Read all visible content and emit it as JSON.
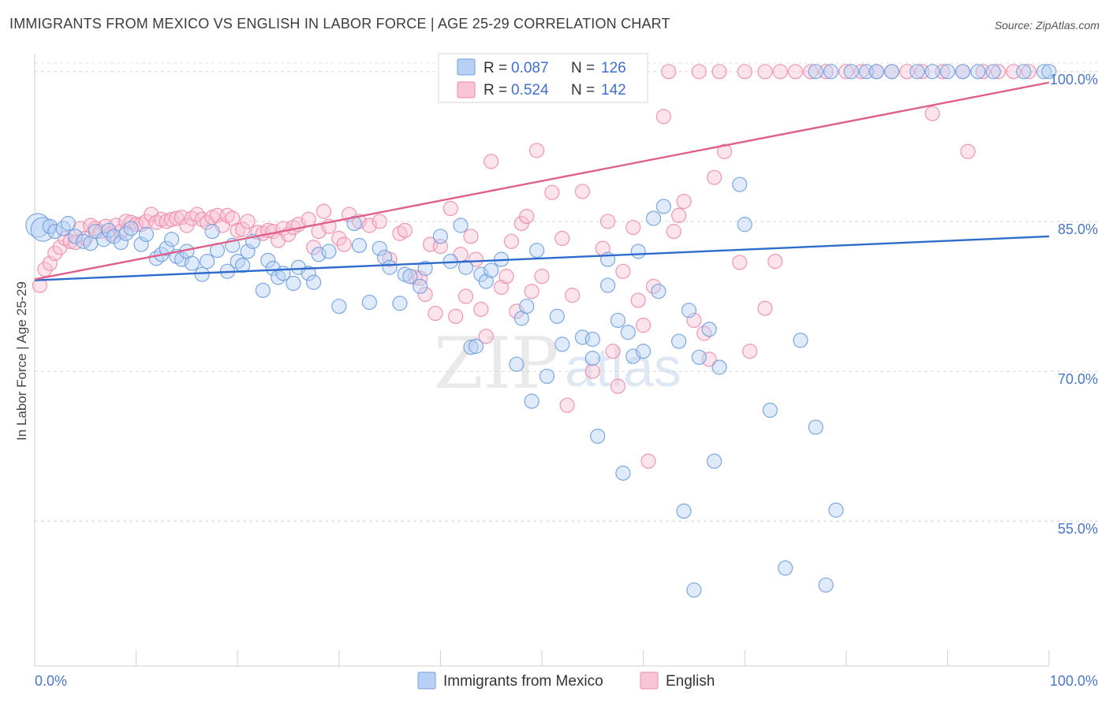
{
  "title": "IMMIGRANTS FROM MEXICO VS ENGLISH IN LABOR FORCE | AGE 25-29 CORRELATION CHART",
  "source": "Source: ZipAtlas.com",
  "watermark": {
    "part1": "ZIP",
    "part2": "atlas"
  },
  "chart_data": {
    "type": "scatter",
    "title": "IMMIGRANTS FROM MEXICO VS ENGLISH IN LABOR FORCE | AGE 25-29 CORRELATION CHART",
    "xlabel": "",
    "ylabel": "In Labor Force | Age 25-29",
    "xlim": [
      0,
      100
    ],
    "ylim": [
      40.5,
      101.8
    ],
    "x_tick_labels": [
      "0.0%",
      "100.0%"
    ],
    "y_ticks": [
      55,
      70,
      85,
      100
    ],
    "y_tick_labels": [
      "55.0%",
      "70.0%",
      "85.0%",
      "100.0%"
    ],
    "grid": "horizontal dashed",
    "legend_placement": "top-center",
    "colors": {
      "mexico": "#6f9fe0",
      "english": "#f08aaa",
      "mexico_line": "#2d6ccc",
      "english_line": "#e0608c"
    },
    "stats": [
      {
        "r_label": "R =",
        "r": "0.087",
        "n_label": "N =",
        "n": "126"
      },
      {
        "r_label": "R =",
        "r": "0.524",
        "n_label": "N =",
        "n": "142"
      }
    ],
    "series": [
      {
        "name": "Immigrants from Mexico",
        "trend": [
          [
            0,
            79.1
          ],
          [
            100,
            83.5
          ]
        ],
        "points": [
          [
            0.3,
            84.6
          ],
          [
            0.8,
            84.2
          ],
          [
            1.5,
            84.5
          ],
          [
            2.0,
            84.0
          ],
          [
            2.8,
            84.3
          ],
          [
            3.3,
            84.8
          ],
          [
            4.0,
            83.5
          ],
          [
            4.8,
            83.0
          ],
          [
            5.5,
            82.8
          ],
          [
            6.0,
            84.0
          ],
          [
            6.8,
            83.2
          ],
          [
            7.3,
            84.1
          ],
          [
            7.8,
            83.5
          ],
          [
            8.5,
            82.9
          ],
          [
            9.0,
            83.8
          ],
          [
            9.5,
            84.3
          ],
          [
            10.5,
            82.7
          ],
          [
            11.0,
            83.7
          ],
          [
            12.0,
            81.3
          ],
          [
            12.5,
            81.7
          ],
          [
            13.0,
            82.3
          ],
          [
            13.5,
            83.2
          ],
          [
            14.0,
            81.5
          ],
          [
            14.5,
            81.2
          ],
          [
            15.0,
            82.0
          ],
          [
            15.5,
            80.8
          ],
          [
            16.5,
            79.7
          ],
          [
            17.0,
            81.0
          ],
          [
            17.5,
            84.0
          ],
          [
            18.0,
            82.1
          ],
          [
            19.0,
            80.0
          ],
          [
            19.5,
            82.6
          ],
          [
            20.0,
            81.0
          ],
          [
            20.5,
            80.6
          ],
          [
            21.0,
            82.0
          ],
          [
            21.5,
            83.0
          ],
          [
            22.5,
            78.1
          ],
          [
            23.0,
            81.1
          ],
          [
            23.5,
            80.3
          ],
          [
            24.0,
            79.4
          ],
          [
            24.5,
            79.8
          ],
          [
            25.5,
            78.8
          ],
          [
            26.0,
            80.4
          ],
          [
            27.0,
            79.8
          ],
          [
            27.5,
            78.9
          ],
          [
            28.0,
            81.7
          ],
          [
            29.0,
            82.0
          ],
          [
            30.0,
            76.5
          ],
          [
            31.5,
            84.8
          ],
          [
            32.0,
            82.6
          ],
          [
            33.0,
            76.9
          ],
          [
            34.0,
            82.3
          ],
          [
            34.5,
            81.4
          ],
          [
            35.0,
            80.4
          ],
          [
            36.0,
            76.8
          ],
          [
            36.5,
            79.7
          ],
          [
            37.0,
            79.5
          ],
          [
            38.0,
            78.5
          ],
          [
            38.5,
            80.3
          ],
          [
            40.0,
            83.5
          ],
          [
            41.0,
            81.0
          ],
          [
            42.0,
            84.6
          ],
          [
            42.5,
            80.4
          ],
          [
            43.0,
            72.4
          ],
          [
            43.5,
            72.5
          ],
          [
            44.0,
            79.7
          ],
          [
            44.5,
            79.0
          ],
          [
            45.0,
            80.1
          ],
          [
            46.0,
            81.2
          ],
          [
            47.5,
            70.7
          ],
          [
            48.0,
            75.3
          ],
          [
            48.5,
            76.5
          ],
          [
            49.0,
            67.0
          ],
          [
            49.5,
            82.1
          ],
          [
            50.5,
            69.5
          ],
          [
            51.5,
            75.5
          ],
          [
            52.0,
            72.7
          ],
          [
            54.0,
            73.4
          ],
          [
            55.0,
            73.2
          ],
          [
            55.5,
            63.5
          ],
          [
            55.0,
            71.3
          ],
          [
            56.5,
            78.6
          ],
          [
            56.5,
            81.2
          ],
          [
            57.5,
            75.1
          ],
          [
            58.0,
            59.8
          ],
          [
            58.5,
            73.9
          ],
          [
            59.0,
            71.5
          ],
          [
            59.5,
            82.0
          ],
          [
            60.0,
            72.0
          ],
          [
            61.0,
            85.3
          ],
          [
            61.5,
            78.0
          ],
          [
            62.0,
            86.5
          ],
          [
            63.5,
            73.0
          ],
          [
            64.0,
            56.0
          ],
          [
            64.5,
            76.1
          ],
          [
            65.0,
            48.1
          ],
          [
            65.5,
            71.4
          ],
          [
            66.5,
            74.2
          ],
          [
            67.0,
            61.0
          ],
          [
            67.5,
            70.4
          ],
          [
            69.5,
            88.7
          ],
          [
            70.0,
            84.7
          ],
          [
            72.5,
            66.1
          ],
          [
            74.0,
            50.3
          ],
          [
            75.5,
            73.1
          ],
          [
            77.0,
            64.4
          ],
          [
            78.0,
            48.6
          ],
          [
            79.0,
            56.1
          ],
          [
            78.5,
            100.0
          ],
          [
            77.0,
            100.0
          ],
          [
            80.5,
            100.0
          ],
          [
            82.0,
            100.0
          ],
          [
            83.0,
            100.0
          ],
          [
            84.5,
            100.0
          ],
          [
            87.0,
            100.0
          ],
          [
            88.5,
            100.0
          ],
          [
            90.0,
            100.0
          ],
          [
            91.5,
            100.0
          ],
          [
            93.0,
            100.0
          ],
          [
            94.5,
            100.0
          ],
          [
            97.5,
            100.0
          ],
          [
            99.5,
            100.0
          ],
          [
            100.0,
            100.0
          ]
        ]
      },
      {
        "name": "English",
        "trend": [
          [
            0,
            79.2
          ],
          [
            100,
            98.9
          ]
        ],
        "points": [
          [
            0.5,
            78.6
          ],
          [
            1.0,
            80.2
          ],
          [
            1.5,
            80.8
          ],
          [
            2.0,
            81.8
          ],
          [
            2.5,
            82.4
          ],
          [
            3.0,
            83.3
          ],
          [
            3.5,
            83.0
          ],
          [
            4.0,
            82.9
          ],
          [
            4.5,
            84.3
          ],
          [
            5.0,
            83.3
          ],
          [
            5.5,
            84.6
          ],
          [
            6.0,
            84.3
          ],
          [
            6.5,
            84.0
          ],
          [
            7.0,
            84.5
          ],
          [
            7.5,
            83.7
          ],
          [
            8.0,
            84.6
          ],
          [
            8.5,
            84.0
          ],
          [
            9.0,
            85.0
          ],
          [
            9.5,
            84.9
          ],
          [
            10.0,
            84.7
          ],
          [
            10.5,
            84.7
          ],
          [
            11.0,
            85.0
          ],
          [
            11.5,
            85.7
          ],
          [
            12.0,
            84.9
          ],
          [
            12.5,
            85.2
          ],
          [
            13.0,
            85.0
          ],
          [
            13.5,
            85.2
          ],
          [
            14.0,
            85.3
          ],
          [
            14.5,
            85.4
          ],
          [
            15.0,
            84.6
          ],
          [
            15.5,
            85.3
          ],
          [
            16.0,
            85.7
          ],
          [
            16.5,
            85.2
          ],
          [
            17.0,
            84.9
          ],
          [
            17.5,
            85.4
          ],
          [
            18.0,
            85.6
          ],
          [
            18.5,
            84.6
          ],
          [
            19.0,
            85.6
          ],
          [
            19.5,
            85.3
          ],
          [
            20.0,
            84.1
          ],
          [
            20.5,
            84.2
          ],
          [
            21.0,
            85.0
          ],
          [
            22.0,
            83.9
          ],
          [
            22.5,
            83.8
          ],
          [
            23.0,
            84.1
          ],
          [
            23.5,
            84.0
          ],
          [
            24.0,
            83.1
          ],
          [
            24.5,
            84.3
          ],
          [
            25.0,
            83.7
          ],
          [
            25.5,
            84.4
          ],
          [
            26.0,
            84.7
          ],
          [
            27.0,
            85.2
          ],
          [
            27.5,
            82.4
          ],
          [
            28.0,
            84.0
          ],
          [
            28.5,
            86.0
          ],
          [
            29.0,
            84.5
          ],
          [
            30.0,
            83.3
          ],
          [
            30.5,
            82.7
          ],
          [
            31.0,
            85.7
          ],
          [
            32.0,
            85.0
          ],
          [
            33.0,
            84.6
          ],
          [
            34.0,
            85.0
          ],
          [
            35.0,
            81.2
          ],
          [
            36.0,
            83.8
          ],
          [
            36.5,
            84.1
          ],
          [
            37.5,
            79.4
          ],
          [
            38.0,
            79.3
          ],
          [
            38.5,
            77.7
          ],
          [
            39.0,
            82.7
          ],
          [
            39.5,
            75.8
          ],
          [
            40.0,
            82.5
          ],
          [
            41.0,
            86.3
          ],
          [
            41.5,
            75.5
          ],
          [
            42.0,
            81.7
          ],
          [
            42.5,
            77.5
          ],
          [
            43.0,
            83.5
          ],
          [
            43.5,
            81.2
          ],
          [
            44.0,
            76.2
          ],
          [
            44.5,
            73.5
          ],
          [
            45.0,
            91.0
          ],
          [
            46.0,
            78.4
          ],
          [
            46.5,
            79.5
          ],
          [
            47.0,
            83.0
          ],
          [
            47.5,
            76.0
          ],
          [
            48.0,
            84.8
          ],
          [
            48.5,
            85.5
          ],
          [
            49.0,
            78.0
          ],
          [
            49.5,
            92.1
          ],
          [
            50.0,
            79.5
          ],
          [
            51.0,
            87.9
          ],
          [
            52.0,
            83.3
          ],
          [
            52.5,
            66.6
          ],
          [
            53.0,
            77.6
          ],
          [
            54.0,
            88.0
          ],
          [
            55.0,
            70.0
          ],
          [
            56.0,
            82.3
          ],
          [
            56.5,
            85.0
          ],
          [
            57.0,
            72.0
          ],
          [
            57.5,
            68.5
          ],
          [
            58.0,
            80.0
          ],
          [
            59.0,
            84.4
          ],
          [
            59.5,
            77.1
          ],
          [
            60.0,
            74.6
          ],
          [
            60.5,
            61.0
          ],
          [
            61.0,
            78.5
          ],
          [
            62.0,
            95.5
          ],
          [
            63.0,
            84.0
          ],
          [
            63.5,
            85.6
          ],
          [
            64.0,
            87.0
          ],
          [
            65.0,
            75.1
          ],
          [
            66.0,
            73.8
          ],
          [
            66.5,
            71.2
          ],
          [
            67.0,
            89.4
          ],
          [
            68.0,
            92.0
          ],
          [
            69.5,
            80.9
          ],
          [
            70.5,
            72.0
          ],
          [
            72.0,
            76.3
          ],
          [
            73.0,
            81.0
          ],
          [
            75.0,
            100.0
          ],
          [
            76.5,
            100.0
          ],
          [
            78.0,
            100.0
          ],
          [
            80.0,
            100.0
          ],
          [
            81.5,
            100.0
          ],
          [
            83.0,
            100.0
          ],
          [
            84.5,
            100.0
          ],
          [
            86.0,
            100.0
          ],
          [
            87.5,
            100.0
          ],
          [
            88.5,
            95.8
          ],
          [
            89.5,
            100.0
          ],
          [
            91.5,
            100.0
          ],
          [
            92.0,
            92.0
          ],
          [
            93.5,
            100.0
          ],
          [
            95.0,
            100.0
          ],
          [
            96.5,
            100.0
          ],
          [
            98.0,
            100.0
          ],
          [
            65.5,
            100.0
          ],
          [
            67.5,
            100.0
          ],
          [
            70.0,
            100.0
          ],
          [
            72.0,
            100.0
          ],
          [
            73.5,
            100.0
          ],
          [
            62.5,
            100.0
          ],
          [
            58.5,
            100.0
          ]
        ]
      }
    ]
  },
  "bottom_legend": [
    {
      "label": "Immigrants from Mexico"
    },
    {
      "label": "English"
    }
  ]
}
